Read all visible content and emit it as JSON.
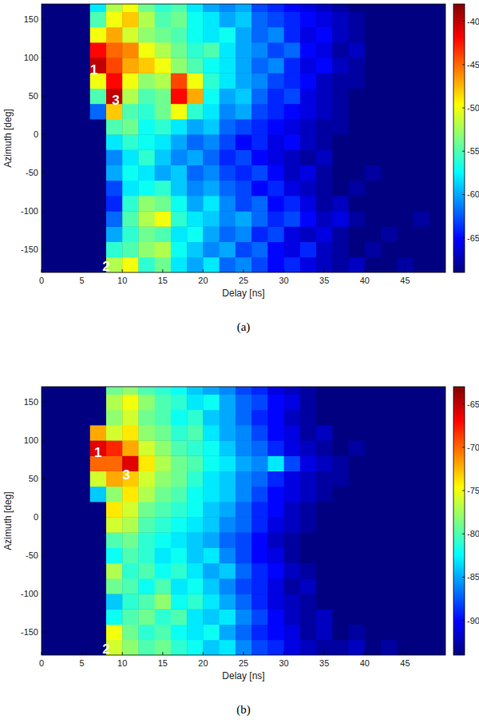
{
  "chart_data": [
    {
      "type": "heatmap",
      "title": "(a)",
      "xlabel": "Delay [ns]",
      "ylabel": "Azimuth [deg]",
      "xlim": [
        0,
        50
      ],
      "ylim": [
        -180,
        170
      ],
      "xticks": [
        0,
        5,
        10,
        15,
        20,
        25,
        30,
        35,
        40,
        45
      ],
      "yticks": [
        -150,
        -100,
        -50,
        0,
        50,
        100,
        150
      ],
      "x_bins": [
        0,
        2,
        4,
        6,
        8,
        10,
        12,
        14,
        16,
        18,
        20,
        22,
        24,
        26,
        28,
        30,
        32,
        34,
        36,
        38,
        40,
        42,
        44,
        46,
        48,
        50
      ],
      "y_bins": [
        -180,
        -160,
        -140,
        -120,
        -100,
        -80,
        -60,
        -40,
        -20,
        0,
        20,
        40,
        60,
        80,
        100,
        120,
        140,
        160,
        180
      ],
      "z": [
        [
          -69,
          -69,
          -69,
          -69,
          -52,
          -50,
          -56,
          -54,
          -58,
          -60,
          -58,
          -62,
          -61,
          -63,
          -65,
          -64,
          -66,
          -67,
          -68,
          -67,
          -69,
          -69,
          -68,
          -69,
          -69
        ],
        [
          -69,
          -69,
          -69,
          -69,
          -56,
          -55,
          -53,
          -52,
          -57,
          -59,
          -61,
          -60,
          -63,
          -62,
          -65,
          -66,
          -64,
          -67,
          -68,
          -69,
          -68,
          -69,
          -69,
          -69,
          -69
        ],
        [
          -69,
          -69,
          -69,
          -69,
          -60,
          -56,
          -54,
          -55,
          -58,
          -57,
          -60,
          -62,
          -61,
          -64,
          -63,
          -66,
          -67,
          -66,
          -68,
          -69,
          -69,
          -68,
          -69,
          -69,
          -69
        ],
        [
          -69,
          -69,
          -69,
          -69,
          -62,
          -55,
          -52,
          -50,
          -56,
          -58,
          -59,
          -61,
          -60,
          -62,
          -64,
          -63,
          -65,
          -67,
          -66,
          -68,
          -69,
          -69,
          -69,
          -68,
          -69
        ],
        [
          -69,
          -69,
          -69,
          -69,
          -64,
          -56,
          -53,
          -54,
          -57,
          -60,
          -58,
          -61,
          -63,
          -62,
          -65,
          -64,
          -66,
          -68,
          -67,
          -69,
          -69,
          -69,
          -69,
          -69,
          -69
        ],
        [
          -69,
          -69,
          -69,
          -69,
          -63,
          -58,
          -57,
          -56,
          -59,
          -61,
          -60,
          -62,
          -63,
          -65,
          -64,
          -66,
          -67,
          -68,
          -69,
          -68,
          -69,
          -69,
          -69,
          -69,
          -69
        ],
        [
          -69,
          -69,
          -69,
          -69,
          -60,
          -57,
          -58,
          -60,
          -59,
          -62,
          -61,
          -63,
          -64,
          -63,
          -65,
          -67,
          -66,
          -68,
          -69,
          -69,
          -68,
          -69,
          -69,
          -69,
          -69
        ],
        [
          -69,
          -69,
          -69,
          -69,
          -61,
          -58,
          -56,
          -59,
          -61,
          -60,
          -62,
          -64,
          -63,
          -65,
          -66,
          -67,
          -68,
          -67,
          -69,
          -69,
          -69,
          -69,
          -69,
          -69,
          -69
        ],
        [
          -69,
          -69,
          -69,
          -69,
          -58,
          -56,
          -57,
          -58,
          -60,
          -62,
          -61,
          -63,
          -65,
          -64,
          -66,
          -65,
          -67,
          -68,
          -69,
          -69,
          -69,
          -69,
          -69,
          -69,
          -69
        ],
        [
          -69,
          -69,
          -69,
          -69,
          -55,
          -54,
          -57,
          -56,
          -58,
          -60,
          -59,
          -62,
          -63,
          -64,
          -65,
          -66,
          -67,
          -68,
          -68,
          -69,
          -69,
          -69,
          -69,
          -69,
          -69
        ],
        [
          -69,
          -69,
          -69,
          -62,
          -48,
          -55,
          -56,
          -54,
          -50,
          -56,
          -58,
          -61,
          -60,
          -63,
          -64,
          -65,
          -66,
          -67,
          -68,
          -69,
          -69,
          -69,
          -69,
          -69,
          -69
        ],
        [
          -69,
          -69,
          -69,
          -55,
          -40,
          -52,
          -55,
          -54,
          -42,
          -47,
          -57,
          -60,
          -59,
          -62,
          -64,
          -63,
          -66,
          -67,
          -68,
          -69,
          -69,
          -69,
          -69,
          -69,
          -69
        ],
        [
          -69,
          -69,
          -69,
          -50,
          -42,
          -50,
          -53,
          -52,
          -44,
          -50,
          -56,
          -58,
          -60,
          -61,
          -63,
          -64,
          -65,
          -67,
          -68,
          -68,
          -69,
          -69,
          -69,
          -69,
          -69
        ],
        [
          -69,
          -69,
          -69,
          -40,
          -44,
          -47,
          -48,
          -50,
          -53,
          -55,
          -57,
          -58,
          -60,
          -62,
          -61,
          -64,
          -66,
          -65,
          -67,
          -68,
          -69,
          -69,
          -69,
          -69,
          -69
        ],
        [
          -69,
          -69,
          -69,
          -42,
          -45,
          -46,
          -50,
          -52,
          -54,
          -56,
          -55,
          -58,
          -60,
          -61,
          -63,
          -62,
          -65,
          -66,
          -68,
          -67,
          -69,
          -69,
          -69,
          -69,
          -69
        ],
        [
          -69,
          -69,
          -69,
          -50,
          -47,
          -51,
          -53,
          -54,
          -55,
          -57,
          -58,
          -57,
          -60,
          -62,
          -61,
          -64,
          -66,
          -65,
          -67,
          -68,
          -69,
          -69,
          -69,
          -69,
          -69
        ],
        [
          -69,
          -69,
          -69,
          -55,
          -50,
          -48,
          -52,
          -55,
          -54,
          -57,
          -58,
          -60,
          -59,
          -62,
          -63,
          -64,
          -65,
          -66,
          -67,
          -68,
          -69,
          -69,
          -69,
          -69,
          -69
        ],
        [
          -69,
          -69,
          -69,
          -58,
          -52,
          -50,
          -54,
          -56,
          -55,
          -58,
          -60,
          -61,
          -60,
          -63,
          -64,
          -65,
          -66,
          -67,
          -68,
          -69,
          -69,
          -69,
          -69,
          -69,
          -69
        ]
      ],
      "colorbar": {
        "range": [
          -69,
          -38
        ],
        "ticks": [
          -65,
          -60,
          -55,
          -50,
          -45,
          -40
        ]
      },
      "annotations": [
        {
          "text": "1",
          "x": 6.5,
          "y": 85
        },
        {
          "text": "3",
          "x": 9.2,
          "y": 45
        },
        {
          "text": "2",
          "x": 8,
          "y": -172
        }
      ]
    },
    {
      "type": "heatmap",
      "title": "(b)",
      "xlabel": "Delay [ns]",
      "ylabel": "Azimuth [deg]",
      "xlim": [
        0,
        50
      ],
      "ylim": [
        -180,
        170
      ],
      "xticks": [
        0,
        5,
        10,
        15,
        20,
        25,
        30,
        35,
        40,
        45
      ],
      "yticks": [
        -150,
        -100,
        -50,
        0,
        50,
        100,
        150
      ],
      "x_bins": [
        0,
        2,
        4,
        6,
        8,
        10,
        12,
        14,
        16,
        18,
        20,
        22,
        24,
        26,
        28,
        30,
        32,
        34,
        36,
        38,
        40,
        42,
        44,
        46,
        48,
        50
      ],
      "y_bins": [
        -180,
        -160,
        -140,
        -120,
        -100,
        -80,
        -60,
        -40,
        -20,
        0,
        20,
        40,
        60,
        80,
        100,
        120,
        140,
        160,
        180
      ],
      "z": [
        [
          -94,
          -94,
          -94,
          -94,
          -76,
          -78,
          -80,
          -79,
          -81,
          -82,
          -84,
          -83,
          -86,
          -88,
          -89,
          -91,
          -92,
          -93,
          -93,
          -92,
          -94,
          -93,
          -94,
          -94,
          -94
        ],
        [
          -94,
          -94,
          -94,
          -94,
          -75,
          -79,
          -81,
          -80,
          -82,
          -83,
          -82,
          -85,
          -87,
          -89,
          -90,
          -91,
          -93,
          -92,
          -94,
          -93,
          -94,
          -94,
          -94,
          -94,
          -94
        ],
        [
          -94,
          -94,
          -94,
          -94,
          -82,
          -80,
          -79,
          -81,
          -80,
          -83,
          -84,
          -83,
          -86,
          -88,
          -90,
          -92,
          -93,
          -92,
          -94,
          -94,
          -94,
          -94,
          -94,
          -94,
          -94
        ],
        [
          -94,
          -94,
          -94,
          -94,
          -84,
          -81,
          -80,
          -78,
          -82,
          -81,
          -83,
          -85,
          -87,
          -89,
          -91,
          -92,
          -93,
          -94,
          -94,
          -94,
          -94,
          -94,
          -94,
          -94,
          -94
        ],
        [
          -94,
          -94,
          -94,
          -94,
          -79,
          -80,
          -82,
          -80,
          -83,
          -82,
          -84,
          -86,
          -88,
          -89,
          -91,
          -93,
          -92,
          -94,
          -94,
          -94,
          -94,
          -94,
          -94,
          -94,
          -94
        ],
        [
          -94,
          -94,
          -94,
          -94,
          -77,
          -81,
          -80,
          -82,
          -81,
          -83,
          -85,
          -84,
          -87,
          -89,
          -90,
          -92,
          -93,
          -94,
          -94,
          -94,
          -94,
          -94,
          -94,
          -94,
          -94
        ],
        [
          -94,
          -94,
          -94,
          -94,
          -82,
          -80,
          -81,
          -83,
          -82,
          -84,
          -83,
          -86,
          -88,
          -90,
          -91,
          -93,
          -94,
          -94,
          -94,
          -94,
          -94,
          -94,
          -94,
          -94,
          -94
        ],
        [
          -94,
          -94,
          -94,
          -94,
          -80,
          -79,
          -81,
          -82,
          -83,
          -84,
          -85,
          -87,
          -88,
          -90,
          -92,
          -93,
          -94,
          -94,
          -94,
          -94,
          -94,
          -94,
          -94,
          -94,
          -94
        ],
        [
          -94,
          -94,
          -94,
          -94,
          -76,
          -77,
          -80,
          -81,
          -82,
          -83,
          -84,
          -86,
          -87,
          -89,
          -91,
          -92,
          -93,
          -94,
          -94,
          -94,
          -94,
          -94,
          -94,
          -94,
          -94
        ],
        [
          -94,
          -94,
          -94,
          -94,
          -74,
          -76,
          -79,
          -80,
          -81,
          -82,
          -84,
          -85,
          -87,
          -89,
          -90,
          -92,
          -93,
          -94,
          -94,
          -94,
          -94,
          -94,
          -94,
          -94,
          -94
        ],
        [
          -94,
          -94,
          -94,
          -84,
          -78,
          -74,
          -77,
          -79,
          -80,
          -82,
          -83,
          -84,
          -86,
          -88,
          -90,
          -91,
          -92,
          -93,
          -94,
          -94,
          -94,
          -94,
          -94,
          -94,
          -94
        ],
        [
          -94,
          -94,
          -94,
          -76,
          -72,
          -73,
          -76,
          -78,
          -79,
          -81,
          -83,
          -84,
          -86,
          -87,
          -89,
          -91,
          -92,
          -93,
          -93,
          -94,
          -94,
          -94,
          -94,
          -94,
          -94
        ],
        [
          -94,
          -94,
          -94,
          -70,
          -70,
          -66,
          -74,
          -77,
          -79,
          -80,
          -82,
          -83,
          -85,
          -86,
          -83,
          -88,
          -91,
          -92,
          -93,
          -94,
          -94,
          -94,
          -94,
          -94,
          -94
        ],
        [
          -94,
          -94,
          -94,
          -66,
          -68,
          -72,
          -76,
          -78,
          -80,
          -81,
          -82,
          -84,
          -86,
          -87,
          -89,
          -91,
          -92,
          -93,
          -94,
          -93,
          -94,
          -94,
          -94,
          -94,
          -94
        ],
        [
          -94,
          -94,
          -94,
          -72,
          -76,
          -74,
          -78,
          -79,
          -81,
          -80,
          -83,
          -85,
          -86,
          -88,
          -90,
          -91,
          -93,
          -92,
          -94,
          -94,
          -94,
          -94,
          -94,
          -94,
          -94
        ],
        [
          -94,
          -94,
          -94,
          -94,
          -78,
          -76,
          -79,
          -80,
          -82,
          -81,
          -84,
          -85,
          -87,
          -89,
          -90,
          -92,
          -93,
          -94,
          -94,
          -94,
          -94,
          -94,
          -94,
          -94,
          -94
        ],
        [
          -94,
          -94,
          -94,
          -94,
          -77,
          -75,
          -78,
          -80,
          -81,
          -83,
          -82,
          -85,
          -87,
          -88,
          -90,
          -91,
          -93,
          -94,
          -94,
          -94,
          -94,
          -94,
          -94,
          -94,
          -94
        ],
        [
          -94,
          -94,
          -94,
          -94,
          -79,
          -78,
          -80,
          -81,
          -82,
          -84,
          -85,
          -86,
          -88,
          -89,
          -91,
          -92,
          -93,
          -94,
          -94,
          -94,
          -94,
          -94,
          -94,
          -94,
          -94
        ]
      ],
      "colorbar": {
        "range": [
          -94,
          -63
        ],
        "ticks": [
          -90,
          -85,
          -80,
          -75,
          -70,
          -65
        ]
      },
      "annotations": [
        {
          "text": "1",
          "x": 7,
          "y": 85
        },
        {
          "text": "3",
          "x": 10.5,
          "y": 55
        },
        {
          "text": "2",
          "x": 8,
          "y": -172
        }
      ]
    }
  ]
}
